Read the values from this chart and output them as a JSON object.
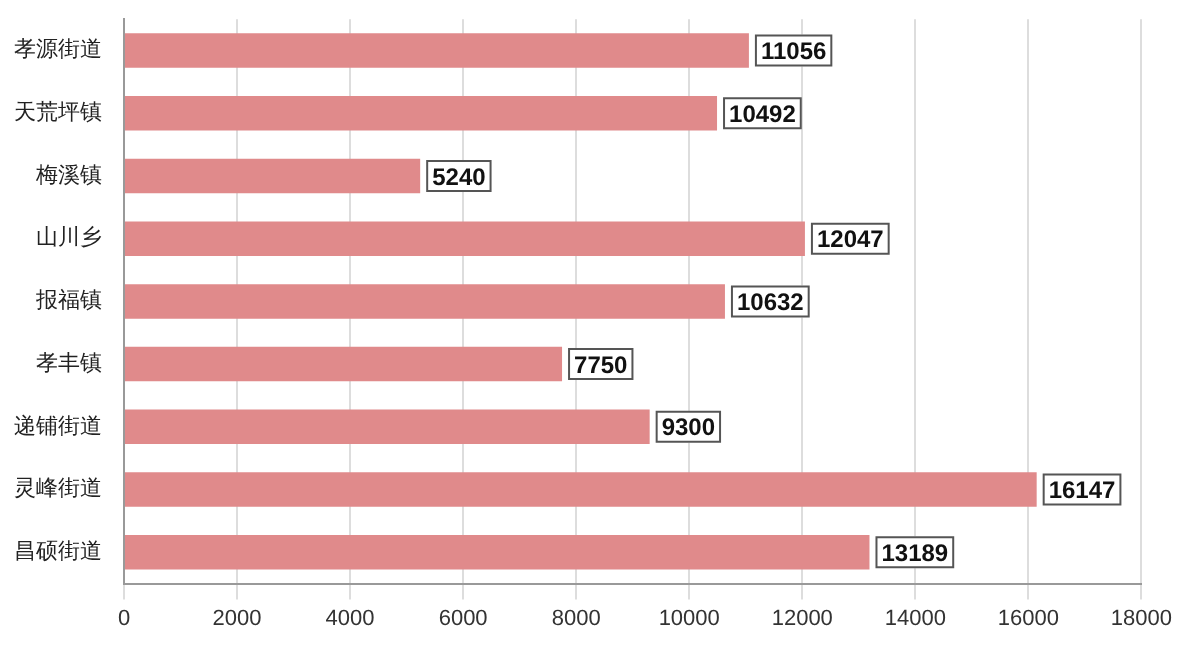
{
  "chart_data": {
    "type": "bar",
    "orientation": "horizontal",
    "categories": [
      "孝源街道",
      "天荒坪镇",
      "梅溪镇",
      "山川乡",
      "报福镇",
      "孝丰镇",
      "递铺街道",
      "灵峰街道",
      "昌硕街道"
    ],
    "values": [
      11056,
      10492,
      5240,
      12047,
      10632,
      7750,
      9300,
      16147,
      13189
    ],
    "color": "#e08a8b",
    "xlim": [
      0,
      18000
    ],
    "xticks": [
      0,
      2000,
      4000,
      6000,
      8000,
      10000,
      12000,
      14000,
      16000,
      18000
    ],
    "grid": "x",
    "legend": false,
    "data_labels": true
  }
}
